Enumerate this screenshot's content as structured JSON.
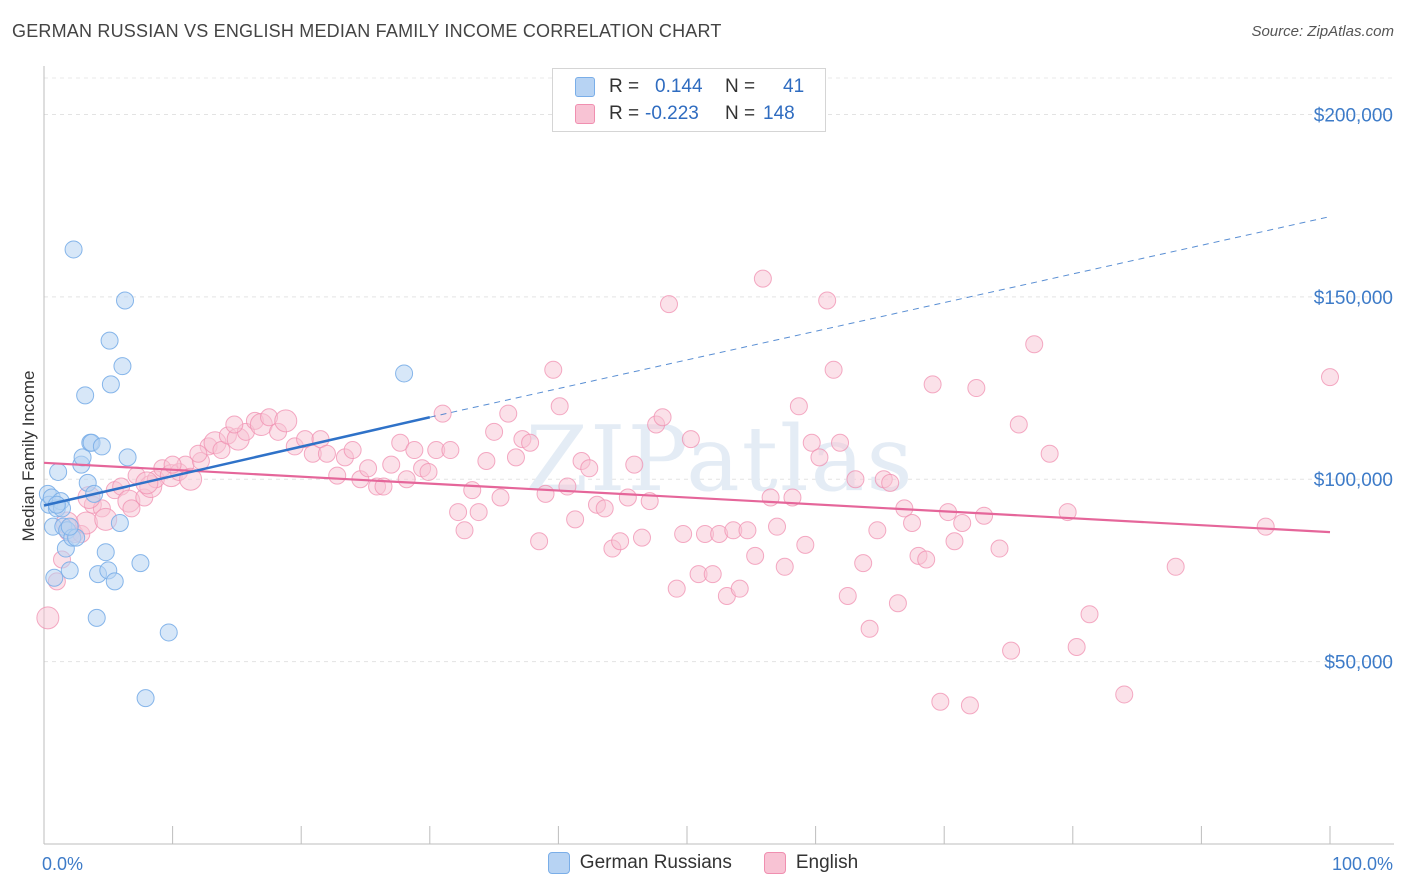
{
  "title": "GERMAN RUSSIAN VS ENGLISH MEDIAN FAMILY INCOME CORRELATION CHART",
  "source": "Source: ZipAtlas.com",
  "watermark": "ZIPatlas",
  "legend": {
    "rows": [
      {
        "r_label": "R =",
        "r_value": "0.144",
        "n_label": "N =",
        "n_value": "41"
      },
      {
        "r_label": "R =",
        "r_value": "-0.223",
        "n_label": "N =",
        "n_value": "148"
      }
    ]
  },
  "colors": {
    "german_russians": "#7aaee8",
    "german_russians_fill": "#b7d3f3",
    "german_russians_line": "#2f72c8",
    "english": "#f08fb0",
    "english_fill": "#f8c3d4",
    "english_line": "#e5669a",
    "axis_label": "#3d7bc8"
  },
  "chart_data": {
    "type": "scatter",
    "title": "GERMAN RUSSIAN VS ENGLISH MEDIAN FAMILY INCOME CORRELATION CHART",
    "xlabel": "",
    "ylabel": "Median Family Income",
    "xlim": [
      0,
      100
    ],
    "ylim": [
      0,
      210000
    ],
    "x_tick_labels": [
      "0.0%",
      "100.0%"
    ],
    "y_ticks": [
      50000,
      100000,
      150000,
      200000
    ],
    "y_tick_labels": [
      "$50,000",
      "$100,000",
      "$150,000",
      "$200,000"
    ],
    "grid": true,
    "legend_position": "top-center",
    "series": [
      {
        "name": "German Russians",
        "r": 0.144,
        "n": 41,
        "trend": {
          "x0": 0,
          "y0": 92800,
          "x1": 30,
          "y1": 117000,
          "dashed_to_x": 100,
          "dashed_to_y": 172000
        },
        "points": [
          [
            0.3,
            96000
          ],
          [
            0.4,
            93000
          ],
          [
            0.6,
            95000
          ],
          [
            0.7,
            87000
          ],
          [
            0.8,
            73000
          ],
          [
            1.0,
            92000
          ],
          [
            1.1,
            102000
          ],
          [
            1.3,
            94000
          ],
          [
            1.4,
            92000
          ],
          [
            1.5,
            87000
          ],
          [
            1.7,
            81000
          ],
          [
            1.8,
            86000
          ],
          [
            2.0,
            75000
          ],
          [
            2.2,
            84000
          ],
          [
            2.3,
            163000
          ],
          [
            2.5,
            84000
          ],
          [
            2.9,
            104000
          ],
          [
            3.0,
            106000
          ],
          [
            3.2,
            123000
          ],
          [
            3.4,
            99000
          ],
          [
            3.6,
            110000
          ],
          [
            3.7,
            110000
          ],
          [
            3.9,
            96000
          ],
          [
            4.1,
            62000
          ],
          [
            4.2,
            74000
          ],
          [
            4.5,
            109000
          ],
          [
            4.8,
            80000
          ],
          [
            5.0,
            75000
          ],
          [
            5.1,
            138000
          ],
          [
            5.2,
            126000
          ],
          [
            5.5,
            72000
          ],
          [
            5.9,
            88000
          ],
          [
            6.1,
            131000
          ],
          [
            6.3,
            149000
          ],
          [
            6.5,
            106000
          ],
          [
            7.5,
            77000
          ],
          [
            7.9,
            40000
          ],
          [
            9.7,
            58000
          ],
          [
            28.0,
            129000
          ],
          [
            1.0,
            93000
          ],
          [
            2.0,
            87000
          ]
        ]
      },
      {
        "name": "English",
        "r": -0.223,
        "n": 148,
        "trend": {
          "x0": 0,
          "y0": 104500,
          "x1": 100,
          "y1": 85500
        },
        "points": [
          [
            0.3,
            62000
          ],
          [
            1.0,
            72000
          ],
          [
            1.4,
            78000
          ],
          [
            2.0,
            86000
          ],
          [
            2.4,
            85000
          ],
          [
            2.9,
            85000
          ],
          [
            3.3,
            88000
          ],
          [
            3.8,
            93000
          ],
          [
            4.5,
            92000
          ],
          [
            4.8,
            89000
          ],
          [
            5.5,
            97000
          ],
          [
            6.0,
            98000
          ],
          [
            6.6,
            94000
          ],
          [
            7.2,
            101000
          ],
          [
            7.8,
            95000
          ],
          [
            8.3,
            98000
          ],
          [
            8.7,
            100000
          ],
          [
            9.2,
            103000
          ],
          [
            9.9,
            101000
          ],
          [
            10.5,
            102000
          ],
          [
            11.0,
            104000
          ],
          [
            11.4,
            100000
          ],
          [
            12.2,
            105000
          ],
          [
            12.8,
            109000
          ],
          [
            13.3,
            110000
          ],
          [
            13.8,
            108000
          ],
          [
            14.3,
            112000
          ],
          [
            15.1,
            111000
          ],
          [
            15.7,
            113000
          ],
          [
            16.4,
            116000
          ],
          [
            16.9,
            115000
          ],
          [
            17.5,
            117000
          ],
          [
            18.2,
            113000
          ],
          [
            18.8,
            116000
          ],
          [
            19.5,
            109000
          ],
          [
            20.3,
            111000
          ],
          [
            20.9,
            107000
          ],
          [
            21.5,
            111000
          ],
          [
            22.0,
            107000
          ],
          [
            22.8,
            101000
          ],
          [
            23.4,
            106000
          ],
          [
            24.0,
            108000
          ],
          [
            24.6,
            100000
          ],
          [
            25.2,
            103000
          ],
          [
            25.9,
            98000
          ],
          [
            26.4,
            98000
          ],
          [
            27.0,
            104000
          ],
          [
            27.7,
            110000
          ],
          [
            28.2,
            100000
          ],
          [
            28.8,
            108000
          ],
          [
            29.4,
            103000
          ],
          [
            29.9,
            102000
          ],
          [
            30.5,
            108000
          ],
          [
            31.0,
            118000
          ],
          [
            31.6,
            108000
          ],
          [
            32.2,
            91000
          ],
          [
            32.7,
            86000
          ],
          [
            33.3,
            97000
          ],
          [
            33.8,
            91000
          ],
          [
            34.4,
            105000
          ],
          [
            35.0,
            113000
          ],
          [
            35.5,
            95000
          ],
          [
            36.1,
            118000
          ],
          [
            36.7,
            106000
          ],
          [
            37.2,
            111000
          ],
          [
            37.8,
            110000
          ],
          [
            38.5,
            83000
          ],
          [
            39.0,
            96000
          ],
          [
            39.6,
            130000
          ],
          [
            40.1,
            120000
          ],
          [
            40.7,
            98000
          ],
          [
            41.3,
            89000
          ],
          [
            41.8,
            105000
          ],
          [
            42.4,
            103000
          ],
          [
            43.0,
            93000
          ],
          [
            43.6,
            92000
          ],
          [
            44.2,
            81000
          ],
          [
            44.8,
            83000
          ],
          [
            45.4,
            95000
          ],
          [
            45.9,
            104000
          ],
          [
            46.5,
            84000
          ],
          [
            47.1,
            94000
          ],
          [
            47.6,
            115000
          ],
          [
            48.1,
            117000
          ],
          [
            48.6,
            148000
          ],
          [
            49.2,
            70000
          ],
          [
            49.7,
            85000
          ],
          [
            50.3,
            111000
          ],
          [
            50.9,
            74000
          ],
          [
            51.4,
            85000
          ],
          [
            52.0,
            74000
          ],
          [
            52.5,
            85000
          ],
          [
            53.1,
            68000
          ],
          [
            53.6,
            86000
          ],
          [
            54.1,
            70000
          ],
          [
            54.7,
            86000
          ],
          [
            55.3,
            79000
          ],
          [
            55.9,
            155000
          ],
          [
            56.5,
            95000
          ],
          [
            57.0,
            87000
          ],
          [
            57.6,
            76000
          ],
          [
            58.2,
            95000
          ],
          [
            58.7,
            120000
          ],
          [
            59.2,
            82000
          ],
          [
            59.7,
            110000
          ],
          [
            60.3,
            106000
          ],
          [
            60.9,
            149000
          ],
          [
            61.4,
            130000
          ],
          [
            61.9,
            110000
          ],
          [
            62.5,
            68000
          ],
          [
            63.1,
            100000
          ],
          [
            63.7,
            77000
          ],
          [
            64.2,
            59000
          ],
          [
            64.8,
            86000
          ],
          [
            65.3,
            100000
          ],
          [
            65.8,
            99000
          ],
          [
            66.4,
            66000
          ],
          [
            66.9,
            92000
          ],
          [
            67.5,
            88000
          ],
          [
            68.0,
            79000
          ],
          [
            68.6,
            78000
          ],
          [
            69.1,
            126000
          ],
          [
            69.7,
            39000
          ],
          [
            70.3,
            91000
          ],
          [
            70.8,
            83000
          ],
          [
            71.4,
            88000
          ],
          [
            72.0,
            38000
          ],
          [
            72.5,
            125000
          ],
          [
            73.1,
            90000
          ],
          [
            74.3,
            81000
          ],
          [
            75.2,
            53000
          ],
          [
            75.8,
            115000
          ],
          [
            77.0,
            137000
          ],
          [
            78.2,
            107000
          ],
          [
            79.6,
            91000
          ],
          [
            80.3,
            54000
          ],
          [
            81.3,
            63000
          ],
          [
            84.0,
            41000
          ],
          [
            88.0,
            76000
          ],
          [
            95.0,
            87000
          ],
          [
            100.0,
            128000
          ],
          [
            3.5,
            95000
          ],
          [
            6.8,
            92000
          ],
          [
            10.0,
            104000
          ],
          [
            8.0,
            99000
          ],
          [
            12.0,
            107000
          ],
          [
            14.8,
            115000
          ],
          [
            1.8,
            88000
          ]
        ]
      }
    ]
  },
  "bottom_legend": [
    {
      "label": "German Russians"
    },
    {
      "label": "English"
    }
  ]
}
